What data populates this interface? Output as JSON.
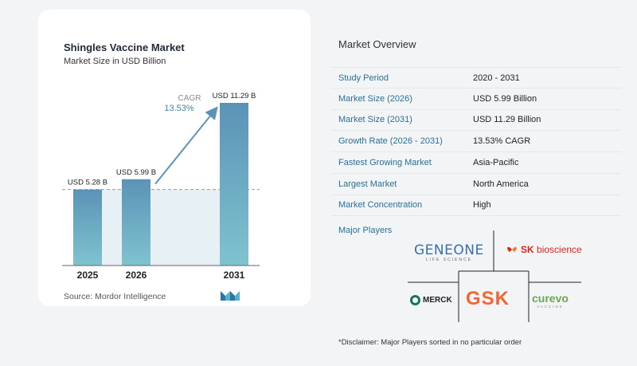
{
  "chart_data": {
    "type": "bar",
    "title": "Shingles Vaccine Market",
    "subtitle": "Market Size in USD Billion",
    "categories": [
      "2025",
      "2026",
      "2031"
    ],
    "values": [
      5.28,
      5.99,
      11.29
    ],
    "data_labels": [
      "USD 5.28 B",
      "USD 5.99 B",
      "USD 11.29 B"
    ],
    "cagr_label": "CAGR",
    "cagr_value": "13.53%",
    "bar_color": "#5b93b7",
    "bar_color_light": "#7fc3cf",
    "ylim": [
      0,
      11.29
    ]
  },
  "source": "Source:  Mordor Intelligence",
  "overview": {
    "title": "Market Overview",
    "rows": [
      {
        "key": "Study Period",
        "value": "2020 - 2031"
      },
      {
        "key": "Market Size (2026)",
        "value": "USD 5.99 Billion"
      },
      {
        "key": "Market Size (2031)",
        "value": "USD 11.29 Billion"
      },
      {
        "key": "Growth Rate (2026 - 2031)",
        "value": "13.53% CAGR"
      },
      {
        "key": "Fastest Growing Market",
        "value": "Asia-Pacific"
      },
      {
        "key": "Largest Market",
        "value": "North America"
      },
      {
        "key": "Market Concentration",
        "value": "High"
      }
    ]
  },
  "players": {
    "label": "Major Players",
    "geneone": "GENEONE",
    "geneone_sub": "LIFE SCIENCE",
    "sk_prefix": "SK",
    "sk_name": "bioscience",
    "merck": "MERCK",
    "gsk": "GSK",
    "curevo": "curevo",
    "curevo_sub": "VACCINE"
  },
  "disclaimer": "*Disclaimer: Major Players sorted in no particular order"
}
